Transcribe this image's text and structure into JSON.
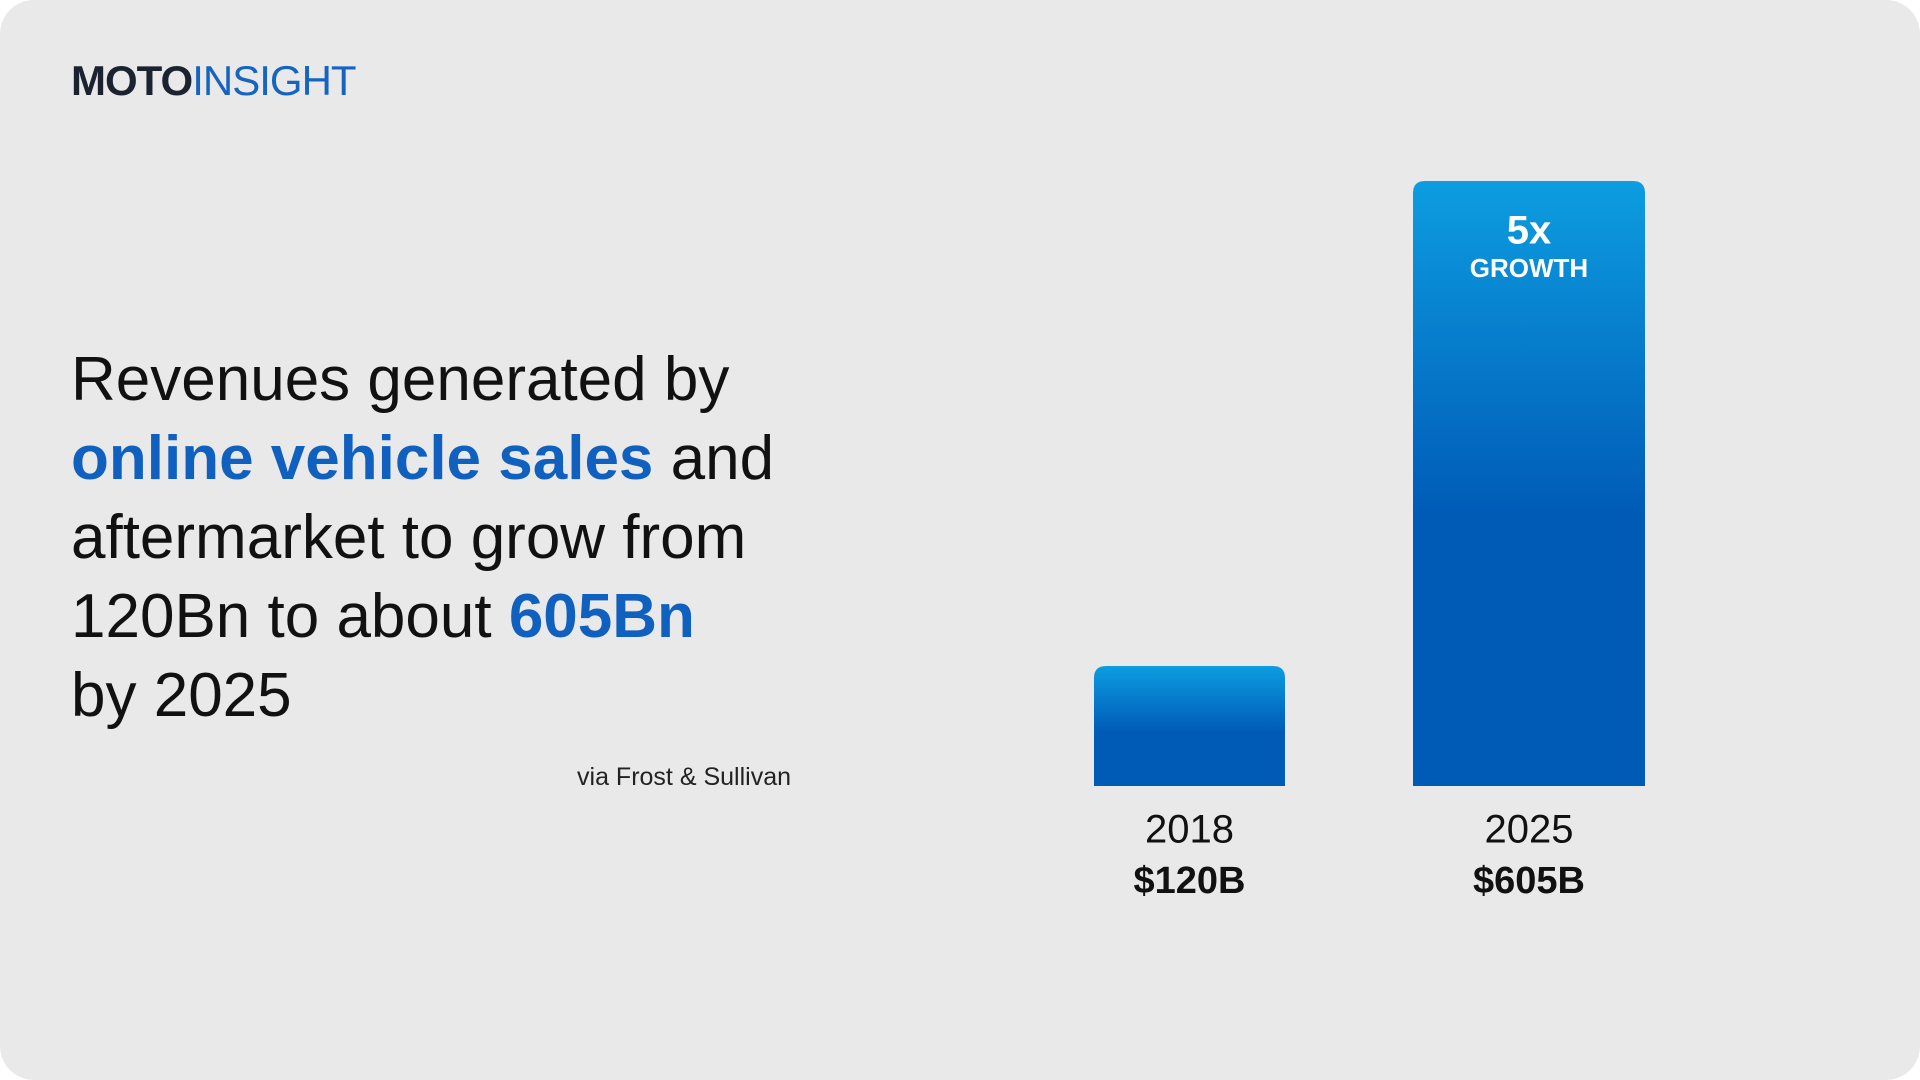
{
  "brand": {
    "bold": "MOTO",
    "light": "INSIGHT"
  },
  "headline": {
    "lines": [
      [
        {
          "text": "Revenues generated by",
          "emphasis": false
        }
      ],
      [
        {
          "text": "online vehicle sales",
          "emphasis": true
        },
        {
          "text": "and",
          "emphasis": false
        }
      ],
      [
        {
          "text": "aftermarket to grow from",
          "emphasis": false
        }
      ],
      [
        {
          "text": "120Bn to about",
          "emphasis": false
        },
        {
          "text": "605Bn",
          "emphasis": true
        }
      ],
      [
        {
          "text": "by 2025",
          "emphasis": false
        }
      ]
    ]
  },
  "source": "via Frost & Sullivan",
  "chart_data": {
    "type": "bar",
    "categories": [
      "2018",
      "2025"
    ],
    "values": [
      120,
      605
    ],
    "value_labels": [
      "$120B",
      "$605B"
    ],
    "gradient": [
      "#0d9de0",
      "#005bb7"
    ],
    "annotation": {
      "text": "5x",
      "subtext": "GROWTH"
    }
  }
}
